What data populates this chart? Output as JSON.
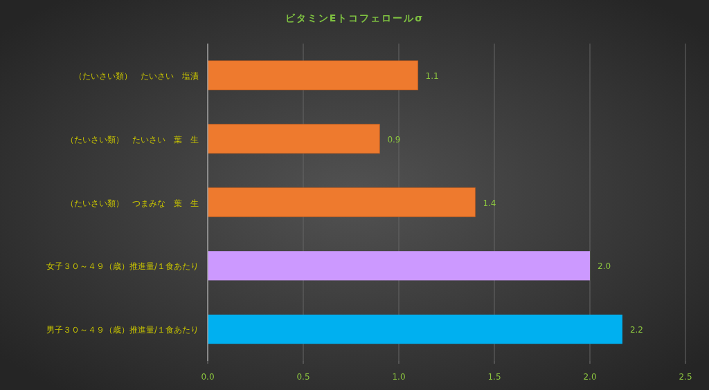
{
  "chart_data": {
    "type": "bar",
    "orientation": "horizontal",
    "title": "ビタミンEトコフェロールσ",
    "categories": [
      "（たいさい類）　たいさい　塩漬",
      "（たいさい類）　たいさい　葉　生",
      "（たいさい類）　つまみな　葉　生",
      "女子３０～４９（歳）推進量/１食あたり",
      "男子３０～４９（歳）推進量/１食あたり"
    ],
    "values": [
      1.1,
      0.9,
      1.4,
      2.0,
      2.17
    ],
    "value_labels": [
      "1.1",
      "0.9",
      "1.4",
      "2.0",
      "2.2"
    ],
    "colors": [
      "#ee7a2e",
      "#ee7a2e",
      "#ee7a2e",
      "#cc99ff",
      "#00b0f0"
    ],
    "xlim": [
      0,
      2.5
    ],
    "xticks": [
      {
        "value": 0,
        "label": "0.0"
      },
      0.5,
      {
        "value": 1,
        "label": "1.0"
      },
      1.5,
      {
        "value": 2,
        "label": "2.0"
      },
      2.5
    ],
    "grid": "x"
  }
}
